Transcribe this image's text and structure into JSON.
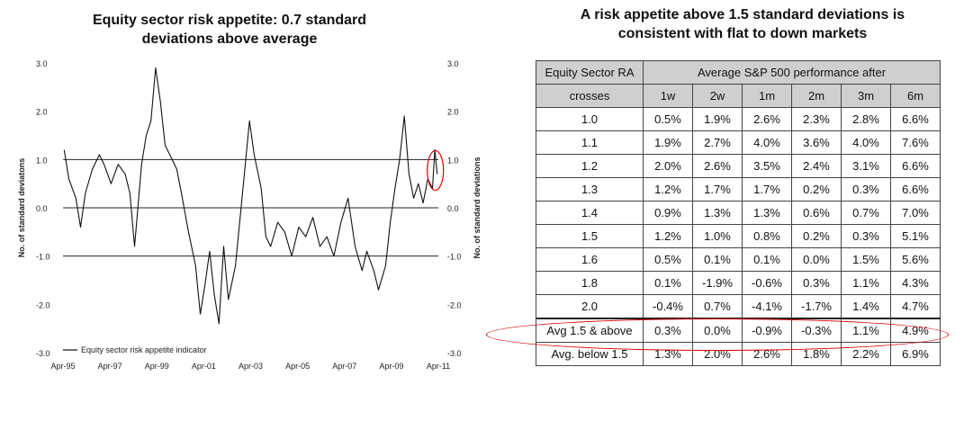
{
  "chart_title_line1": "Equity sector risk appetite: 0.7 standard",
  "chart_title_line2": "deviations above average",
  "table_title_line1": "A risk appetite above 1.5 standard deviations is",
  "table_title_line2": "consistent with flat to down markets",
  "colors": {
    "series": "#111111",
    "highlight": "#dd0000",
    "header_bg": "#cfcfcf"
  },
  "chart_data": {
    "type": "line",
    "title": "Equity sector risk appetite: 0.7 standard deviations above average",
    "ylabel_left": "No. of standard deviatons",
    "ylabel_right": "No. of standard deviations",
    "ylim": [
      -3.0,
      3.0
    ],
    "y_ticks": [
      "3.0",
      "2.0",
      "1.0",
      "0.0",
      "-1.0",
      "-2.0",
      "-3.0"
    ],
    "y_tick_values": [
      3,
      2,
      1,
      0,
      -1,
      -2,
      -3
    ],
    "x_ticks": [
      "Apr-95",
      "Apr-97",
      "Apr-99",
      "Apr-01",
      "Apr-03",
      "Apr-05",
      "Apr-07",
      "Apr-09",
      "Apr-11"
    ],
    "x_tick_values": [
      1995.25,
      1997.25,
      1999.25,
      2001.25,
      2003.25,
      2005.25,
      2007.25,
      2009.25,
      2011.25
    ],
    "xlim": [
      1995.25,
      2011.25
    ],
    "reference_lines": [
      1.0,
      0.0,
      -1.0
    ],
    "legend": "Equity sector risk appetite indicator",
    "legend_position": "bottom-left",
    "latest_value": 0.7,
    "series": [
      {
        "name": "Equity sector risk appetite indicator",
        "x": [
          1995.3,
          1995.5,
          1995.8,
          1996.0,
          1996.2,
          1996.5,
          1996.8,
          1997.0,
          1997.3,
          1997.6,
          1997.9,
          1998.1,
          1998.3,
          1998.6,
          1998.8,
          1999.0,
          1999.2,
          1999.4,
          1999.6,
          1999.9,
          2000.1,
          2000.3,
          2000.6,
          2000.9,
          2001.1,
          2001.3,
          2001.5,
          2001.7,
          2001.9,
          2002.1,
          2002.3,
          2002.6,
          2002.8,
          2003.0,
          2003.2,
          2003.4,
          2003.7,
          2003.9,
          2004.1,
          2004.4,
          2004.7,
          2005.0,
          2005.3,
          2005.6,
          2005.9,
          2006.2,
          2006.5,
          2006.8,
          2007.1,
          2007.4,
          2007.7,
          2008.0,
          2008.2,
          2008.5,
          2008.7,
          2009.0,
          2009.2,
          2009.4,
          2009.6,
          2009.8,
          2010.0,
          2010.2,
          2010.4,
          2010.6,
          2010.8,
          2011.0,
          2011.1,
          2011.2
        ],
        "y": [
          1.2,
          0.6,
          0.2,
          -0.4,
          0.3,
          0.8,
          1.1,
          0.9,
          0.5,
          0.9,
          0.7,
          0.3,
          -0.8,
          0.9,
          1.5,
          1.8,
          2.9,
          2.2,
          1.3,
          1.0,
          0.8,
          0.3,
          -0.5,
          -1.2,
          -2.2,
          -1.6,
          -0.9,
          -1.8,
          -2.4,
          -0.8,
          -1.9,
          -1.2,
          -0.2,
          0.8,
          1.8,
          1.1,
          0.4,
          -0.6,
          -0.8,
          -0.3,
          -0.5,
          -1.0,
          -0.4,
          -0.6,
          -0.2,
          -0.8,
          -0.6,
          -1.0,
          -0.3,
          0.2,
          -0.8,
          -1.3,
          -0.9,
          -1.3,
          -1.7,
          -1.2,
          -0.3,
          0.4,
          1.0,
          1.9,
          0.7,
          0.2,
          0.5,
          0.1,
          0.6,
          0.4,
          1.2,
          0.7
        ]
      }
    ]
  },
  "table": {
    "header_label_line1": "Equity Sector RA",
    "header_label_line2": "crosses",
    "group_header": "Average S&P 500 performance after",
    "columns": [
      "1w",
      "2w",
      "1m",
      "2m",
      "3m",
      "6m"
    ],
    "rows": [
      {
        "label": "1.0",
        "values": [
          "0.5%",
          "1.9%",
          "2.6%",
          "2.3%",
          "2.8%",
          "6.6%"
        ]
      },
      {
        "label": "1.1",
        "values": [
          "1.9%",
          "2.7%",
          "4.0%",
          "3.6%",
          "4.0%",
          "7.6%"
        ]
      },
      {
        "label": "1.2",
        "values": [
          "2.0%",
          "2.6%",
          "3.5%",
          "2.4%",
          "3.1%",
          "6.6%"
        ]
      },
      {
        "label": "1.3",
        "values": [
          "1.2%",
          "1.7%",
          "1.7%",
          "0.2%",
          "0.3%",
          "6.6%"
        ]
      },
      {
        "label": "1.4",
        "values": [
          "0.9%",
          "1.3%",
          "1.3%",
          "0.6%",
          "0.7%",
          "7.0%"
        ]
      },
      {
        "label": "1.5",
        "values": [
          "1.2%",
          "1.0%",
          "0.8%",
          "0.2%",
          "0.3%",
          "5.1%"
        ]
      },
      {
        "label": "1.6",
        "values": [
          "0.5%",
          "0.1%",
          "0.1%",
          "0.0%",
          "1.5%",
          "5.6%"
        ]
      },
      {
        "label": "1.8",
        "values": [
          "0.1%",
          "-1.9%",
          "-0.6%",
          "0.3%",
          "1.1%",
          "4.3%"
        ]
      },
      {
        "label": "2.0",
        "values": [
          "-0.4%",
          "0.7%",
          "-4.1%",
          "-1.7%",
          "1.4%",
          "4.7%"
        ]
      }
    ],
    "summary_rows": [
      {
        "label": "Avg 1.5 & above",
        "values": [
          "0.3%",
          "0.0%",
          "-0.9%",
          "-0.3%",
          "1.1%",
          "4.9%"
        ]
      },
      {
        "label": "Avg. below 1.5",
        "values": [
          "1.3%",
          "2.0%",
          "2.6%",
          "1.8%",
          "2.2%",
          "6.9%"
        ]
      }
    ]
  }
}
